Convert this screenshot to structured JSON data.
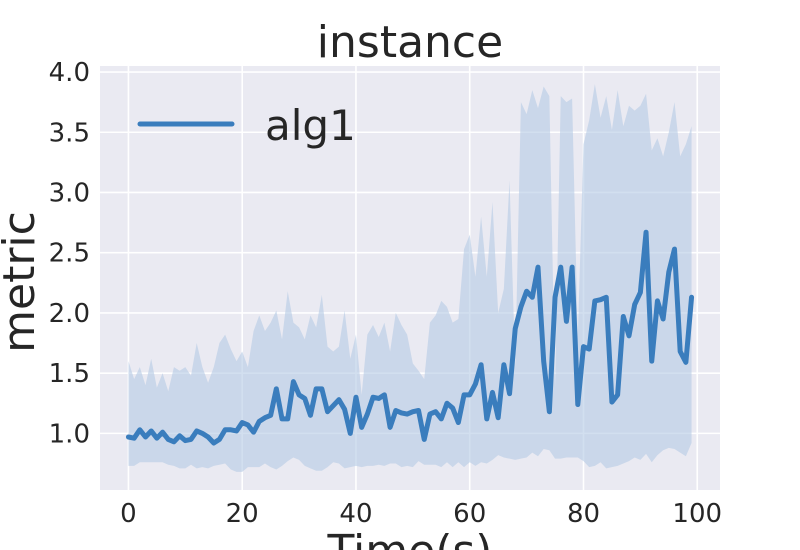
{
  "colors": {
    "plot_background": "#EAEAF2",
    "grid": "#FFFFFF",
    "series": "#3A7DBD",
    "band": "#B7CCE5"
  },
  "chart_data": {
    "type": "line",
    "title": "instance",
    "xlabel": "Time(s)",
    "ylabel": "metric",
    "xlim": [
      -5,
      104
    ],
    "ylim": [
      0.53,
      4.05
    ],
    "xticks": [
      0,
      20,
      40,
      60,
      80,
      100
    ],
    "yticks": [
      1.0,
      1.5,
      2.0,
      2.5,
      3.0,
      3.5,
      4.0
    ],
    "xtick_labels": [
      "0",
      "20",
      "40",
      "60",
      "80",
      "100"
    ],
    "ytick_labels": [
      "1.0",
      "1.5",
      "2.0",
      "2.5",
      "3.0",
      "3.5",
      "4.0"
    ],
    "grid": true,
    "legend_position": "top-left",
    "series": [
      {
        "name": "alg1",
        "x": [
          0,
          1,
          2,
          3,
          4,
          5,
          6,
          7,
          8,
          9,
          10,
          11,
          12,
          13,
          14,
          15,
          16,
          17,
          18,
          19,
          20,
          21,
          22,
          23,
          24,
          25,
          26,
          27,
          28,
          29,
          30,
          31,
          32,
          33,
          34,
          35,
          36,
          37,
          38,
          39,
          40,
          41,
          42,
          43,
          44,
          45,
          46,
          47,
          48,
          49,
          50,
          51,
          52,
          53,
          54,
          55,
          56,
          57,
          58,
          59,
          60,
          61,
          62,
          63,
          64,
          65,
          66,
          67,
          68,
          69,
          70,
          71,
          72,
          73,
          74,
          75,
          76,
          77,
          78,
          79,
          80,
          81,
          82,
          83,
          84,
          85,
          86,
          87,
          88,
          89,
          90,
          91,
          92,
          93,
          94,
          95,
          96,
          97,
          98,
          99
        ],
        "values": [
          0.97,
          0.96,
          1.03,
          0.97,
          1.02,
          0.96,
          1.01,
          0.95,
          0.93,
          0.98,
          0.94,
          0.95,
          1.02,
          1.0,
          0.97,
          0.92,
          0.95,
          1.03,
          1.03,
          1.02,
          1.09,
          1.07,
          1.01,
          1.1,
          1.13,
          1.15,
          1.37,
          1.12,
          1.12,
          1.43,
          1.32,
          1.29,
          1.15,
          1.37,
          1.37,
          1.18,
          1.23,
          1.28,
          1.2,
          1.0,
          1.3,
          1.05,
          1.16,
          1.3,
          1.29,
          1.32,
          1.05,
          1.19,
          1.17,
          1.16,
          1.18,
          1.19,
          0.95,
          1.16,
          1.18,
          1.12,
          1.25,
          1.21,
          1.09,
          1.32,
          1.32,
          1.41,
          1.57,
          1.12,
          1.34,
          1.13,
          1.57,
          1.33,
          1.87,
          2.05,
          2.18,
          2.13,
          2.38,
          1.6,
          1.18,
          2.13,
          2.38,
          1.93,
          2.38,
          1.24,
          1.72,
          1.7,
          2.1,
          2.11,
          2.13,
          1.26,
          1.32,
          1.97,
          1.81,
          2.07,
          2.17,
          2.67,
          1.6,
          2.1,
          1.95,
          2.34,
          2.53,
          1.68,
          1.59,
          2.13
        ],
        "lower": [
          0.73,
          0.73,
          0.76,
          0.76,
          0.76,
          0.76,
          0.76,
          0.74,
          0.73,
          0.71,
          0.71,
          0.74,
          0.71,
          0.72,
          0.71,
          0.73,
          0.74,
          0.75,
          0.7,
          0.68,
          0.68,
          0.72,
          0.72,
          0.72,
          0.75,
          0.72,
          0.7,
          0.73,
          0.77,
          0.8,
          0.78,
          0.73,
          0.71,
          0.69,
          0.69,
          0.72,
          0.76,
          0.75,
          0.71,
          0.72,
          0.73,
          0.72,
          0.73,
          0.73,
          0.74,
          0.73,
          0.75,
          0.75,
          0.72,
          0.73,
          0.72,
          0.77,
          0.74,
          0.74,
          0.74,
          0.72,
          0.76,
          0.72,
          0.76,
          0.72,
          0.76,
          0.73,
          0.76,
          0.75,
          0.78,
          0.82,
          0.8,
          0.79,
          0.78,
          0.79,
          0.8,
          0.84,
          0.81,
          0.87,
          0.86,
          0.79,
          0.79,
          0.8,
          0.8,
          0.8,
          0.77,
          0.72,
          0.73,
          0.76,
          0.71,
          0.72,
          0.73,
          0.75,
          0.77,
          0.8,
          0.78,
          0.83,
          0.76,
          0.82,
          0.86,
          0.88,
          0.87,
          0.84,
          0.81,
          0.92
        ],
        "upper": [
          1.6,
          1.45,
          1.55,
          1.4,
          1.62,
          1.38,
          1.5,
          1.35,
          1.55,
          1.52,
          1.55,
          1.48,
          1.75,
          1.55,
          1.42,
          1.55,
          1.75,
          1.82,
          1.7,
          1.6,
          1.68,
          1.55,
          1.85,
          1.98,
          1.85,
          1.92,
          2.02,
          1.78,
          2.18,
          1.92,
          1.88,
          1.78,
          1.98,
          1.88,
          2.15,
          1.72,
          1.68,
          1.72,
          2.02,
          1.62,
          1.82,
          1.32,
          1.82,
          1.9,
          1.8,
          1.92,
          1.68,
          2.0,
          1.9,
          1.82,
          1.58,
          1.52,
          1.45,
          1.92,
          1.98,
          2.1,
          2.05,
          1.92,
          1.95,
          2.53,
          2.65,
          2.3,
          2.8,
          2.3,
          2.92,
          2.0,
          2.2,
          3.1,
          1.55,
          3.75,
          3.65,
          3.85,
          3.7,
          3.88,
          3.8,
          1.38,
          3.8,
          3.75,
          3.78,
          1.8,
          3.4,
          3.6,
          3.9,
          3.62,
          3.8,
          3.52,
          3.85,
          3.55,
          3.72,
          3.68,
          3.72,
          3.82,
          3.35,
          3.45,
          3.3,
          3.5,
          3.75,
          3.3,
          3.4,
          3.55
        ]
      }
    ]
  }
}
